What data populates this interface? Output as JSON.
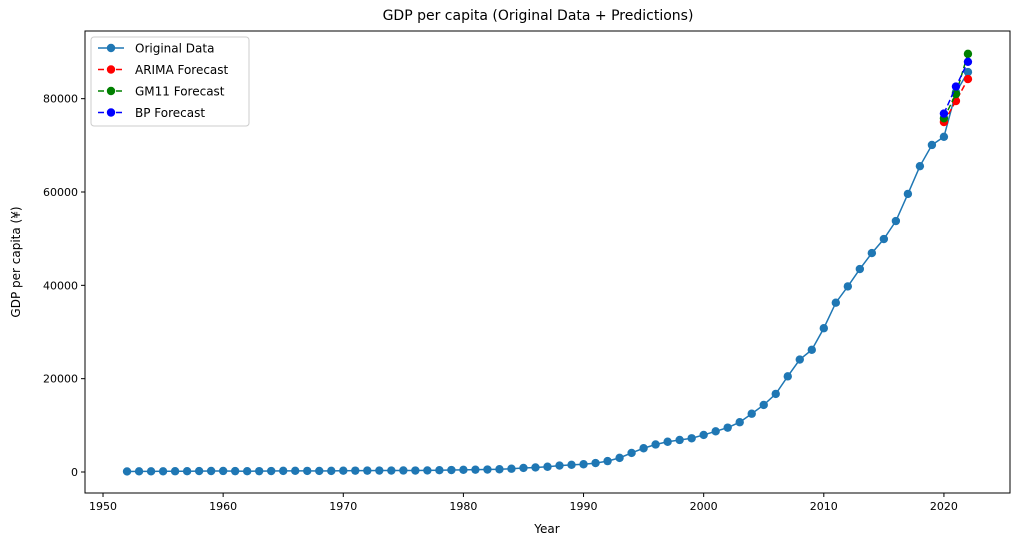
{
  "chart_data": {
    "type": "line",
    "title": "GDP per capita (Original Data + Predictions)",
    "xlabel": "Year",
    "ylabel": "GDP per capita (¥)",
    "xlim": [
      1948.5,
      2025.5
    ],
    "ylim": [
      -4500,
      94500
    ],
    "xticks": [
      1950,
      1960,
      1970,
      1980,
      1990,
      2000,
      2010,
      2020
    ],
    "yticks": [
      0,
      20000,
      40000,
      60000,
      80000
    ],
    "grid": false,
    "legend": "top-left",
    "series": [
      {
        "name": "Original Data",
        "color": "#1f77b4",
        "style": "solid",
        "x": [
          1952,
          1953,
          1954,
          1955,
          1956,
          1957,
          1958,
          1959,
          1960,
          1961,
          1962,
          1963,
          1964,
          1965,
          1966,
          1967,
          1968,
          1969,
          1970,
          1971,
          1972,
          1973,
          1974,
          1975,
          1976,
          1977,
          1978,
          1979,
          1980,
          1981,
          1982,
          1983,
          1984,
          1985,
          1986,
          1987,
          1988,
          1989,
          1990,
          1991,
          1992,
          1993,
          1994,
          1995,
          1996,
          1997,
          1998,
          1999,
          2000,
          2001,
          2002,
          2003,
          2004,
          2005,
          2006,
          2007,
          2008,
          2009,
          2010,
          2011,
          2012,
          2013,
          2014,
          2015,
          2016,
          2017,
          2018,
          2019,
          2020,
          2021,
          2022
        ],
        "y": [
          119,
          144,
          144,
          150,
          166,
          168,
          200,
          216,
          218,
          185,
          173,
          181,
          208,
          240,
          254,
          235,
          222,
          243,
          276,
          288,
          292,
          309,
          310,
          327,
          316,
          339,
          385,
          423,
          468,
          497,
          533,
          588,
          702,
          866,
          973,
          1123,
          1378,
          1536,
          1663,
          1912,
          2334,
          3027,
          4081,
          5091,
          5898,
          6481,
          6860,
          7229,
          7942,
          8717,
          9506,
          10666,
          12487,
          14368,
          16738,
          20494,
          24100,
          26180,
          30808,
          36277,
          39771,
          43497,
          46912,
          49922,
          53783,
          59592,
          65534,
          70078,
          71828,
          81370,
          85698
        ]
      },
      {
        "name": "ARIMA Forecast",
        "color": "#ff0000",
        "style": "dashed",
        "x": [
          2020,
          2021,
          2022
        ],
        "y": [
          75000,
          79500,
          84200
        ]
      },
      {
        "name": "GM11 Forecast",
        "color": "#008000",
        "style": "dashed",
        "x": [
          2020,
          2021,
          2022
        ],
        "y": [
          75800,
          81000,
          89600
        ]
      },
      {
        "name": "BP Forecast",
        "color": "#0000ff",
        "style": "dashed",
        "x": [
          2020,
          2021,
          2022
        ],
        "y": [
          76800,
          82600,
          87900
        ]
      }
    ]
  }
}
